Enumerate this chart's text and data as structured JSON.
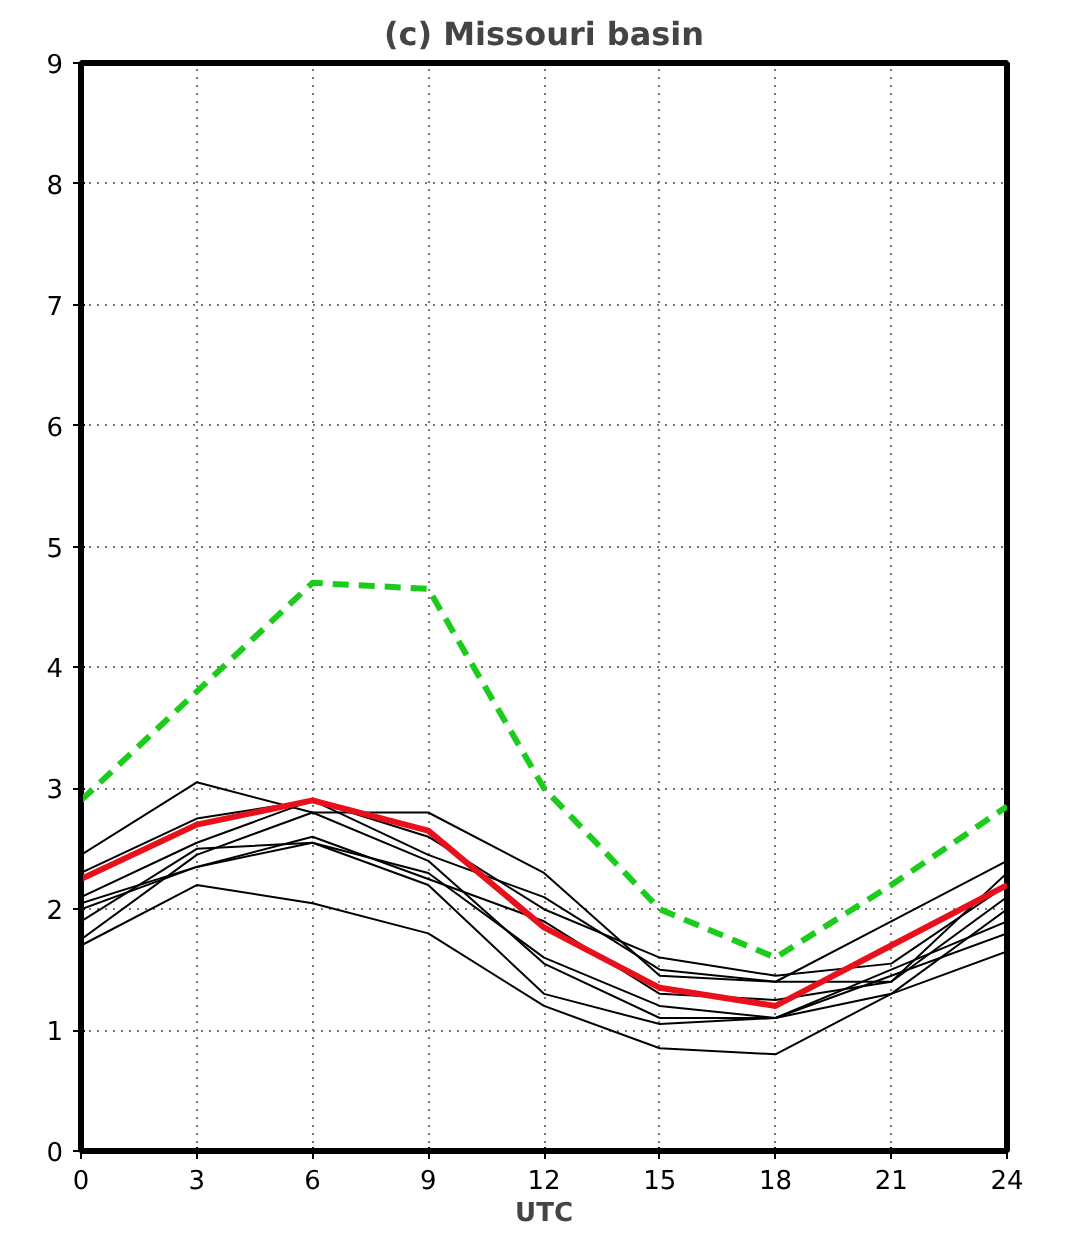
{
  "chart_data": {
    "type": "line",
    "title": "(c) Missouri basin",
    "xlabel": "UTC",
    "x": [
      0,
      3,
      6,
      9,
      12,
      15,
      18,
      21,
      24
    ],
    "series": [
      {
        "color": "#000000",
        "values": [
          2.45,
          3.05,
          2.8,
          2.8,
          2.3,
          1.45,
          1.4,
          1.9,
          2.4
        ]
      },
      {
        "color": "#000000",
        "values": [
          2.3,
          2.75,
          2.9,
          2.6,
          2.0,
          1.6,
          1.45,
          1.55,
          2.2
        ]
      },
      {
        "color": "#000000",
        "values": [
          2.1,
          2.55,
          2.9,
          2.45,
          2.1,
          1.5,
          1.4,
          1.4,
          2.3
        ]
      },
      {
        "color": "#000000",
        "values": [
          2.05,
          2.35,
          2.6,
          2.25,
          1.9,
          1.3,
          1.25,
          1.4,
          2.1
        ]
      },
      {
        "color": "#000000",
        "values": [
          1.9,
          2.5,
          2.55,
          2.3,
          1.6,
          1.2,
          1.1,
          1.3,
          2.0
        ]
      },
      {
        "color": "#000000",
        "values": [
          1.75,
          2.45,
          2.8,
          2.4,
          1.55,
          1.1,
          1.1,
          1.5,
          1.9
        ]
      },
      {
        "color": "#000000",
        "values": [
          1.7,
          2.2,
          2.05,
          1.8,
          1.2,
          0.85,
          0.8,
          1.3,
          1.65
        ]
      },
      {
        "color": "#000000",
        "values": [
          2.0,
          2.35,
          2.55,
          2.2,
          1.3,
          1.05,
          1.1,
          1.45,
          1.8
        ]
      },
      {
        "color": "#e8101a",
        "values": [
          2.25,
          2.7,
          2.9,
          2.65,
          1.85,
          1.35,
          1.2,
          1.7,
          2.2
        ]
      },
      {
        "color": "#1ccc1c",
        "line_style": "dashed",
        "values": [
          2.9,
          3.8,
          4.7,
          4.65,
          3.0,
          2.0,
          1.6,
          2.2,
          2.85
        ]
      }
    ],
    "xlim": [
      0,
      24
    ],
    "xticks": [
      0,
      3,
      6,
      9,
      12,
      15,
      18,
      21,
      24
    ],
    "ylim": [
      0,
      9
    ],
    "yticks": [
      0,
      1,
      2,
      3,
      4,
      5,
      6,
      7,
      8,
      9
    ],
    "grid": true,
    "marker": "none",
    "line_style": "solid"
  }
}
